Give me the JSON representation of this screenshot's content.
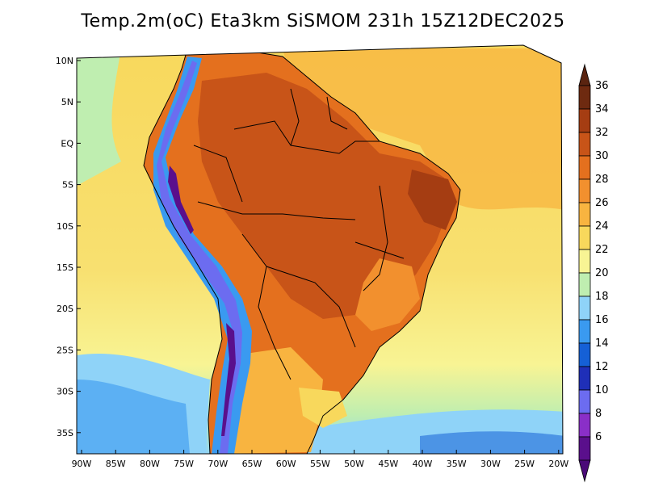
{
  "title": "Temp.2m(oC) Eta3km SiSMOM 231h 15Z12DEC2025",
  "map": {
    "variable": "2 m temperature",
    "units": "oC",
    "lat_labels": [
      "10N",
      "5N",
      "EQ",
      "5S",
      "10S",
      "15S",
      "20S",
      "25S",
      "30S",
      "35S"
    ],
    "lon_labels": [
      "90W",
      "85W",
      "80W",
      "75W",
      "70W",
      "65W",
      "60W",
      "55W",
      "50W",
      "45W",
      "40W",
      "35W",
      "30W",
      "25W",
      "20W"
    ],
    "lat_values": [
      10,
      5,
      0,
      -5,
      -10,
      -15,
      -20,
      -25,
      -30,
      -35
    ],
    "lon_values": [
      -90,
      -85,
      -80,
      -75,
      -70,
      -65,
      -60,
      -55,
      -50,
      -45,
      -40,
      -35,
      -30,
      -25,
      -20
    ]
  },
  "colorbar": {
    "levels": [
      "6",
      "8",
      "10",
      "12",
      "14",
      "16",
      "18",
      "20",
      "22",
      "24",
      "26",
      "28",
      "30",
      "32",
      "34",
      "36"
    ],
    "colors": [
      "#5a0f8c",
      "#8a2fc8",
      "#6c6cf0",
      "#1f2fb8",
      "#1560d6",
      "#3a9af0",
      "#8fd3f8",
      "#bfeeb0",
      "#f8f494",
      "#f8d85c",
      "#f8b440",
      "#f2902e",
      "#e4701e",
      "#c85418",
      "#a53d12",
      "#6e2a10"
    ],
    "arrow_low_color": "#4a0a78",
    "arrow_high_color": "#5a2410"
  }
}
